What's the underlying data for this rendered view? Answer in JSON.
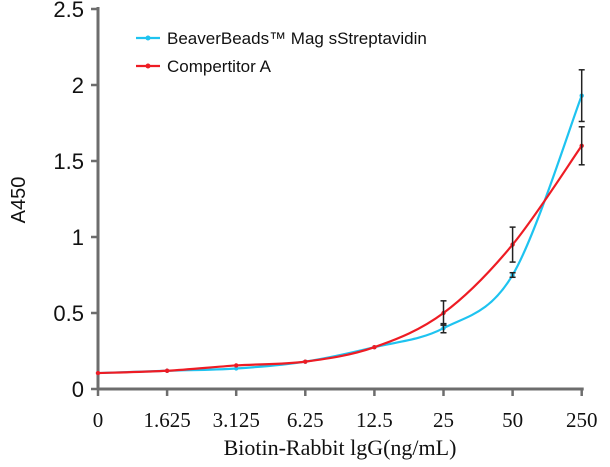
{
  "chart_data": {
    "type": "line",
    "title": "",
    "xlabel": "Biotin-Rabbit lgG(ng/mL)",
    "ylabel": "A450",
    "categories": [
      "0",
      "1.625",
      "3.125",
      "6.25",
      "12.5",
      "25",
      "50",
      "250"
    ],
    "ylim": [
      0,
      2.5
    ],
    "yticks": [
      "0",
      "0.5",
      "1",
      "1.5",
      "2",
      "2.5"
    ],
    "grid": false,
    "legend_position": "top-left",
    "series": [
      {
        "name": "BeaverBeads™ Mag sStreptavidin",
        "color": "#1ec3f0",
        "values": [
          0.105,
          0.12,
          0.135,
          0.18,
          0.275,
          0.4,
          0.75,
          1.93
        ],
        "errors": [
          0,
          0,
          0,
          0,
          0,
          0.03,
          0.015,
          0.17
        ]
      },
      {
        "name": "Compertitor A",
        "color": "#ee1c24",
        "values": [
          0.105,
          0.12,
          0.155,
          0.18,
          0.275,
          0.5,
          0.95,
          1.6
        ],
        "errors": [
          0,
          0,
          0,
          0,
          0,
          0.08,
          0.115,
          0.125
        ]
      }
    ]
  }
}
